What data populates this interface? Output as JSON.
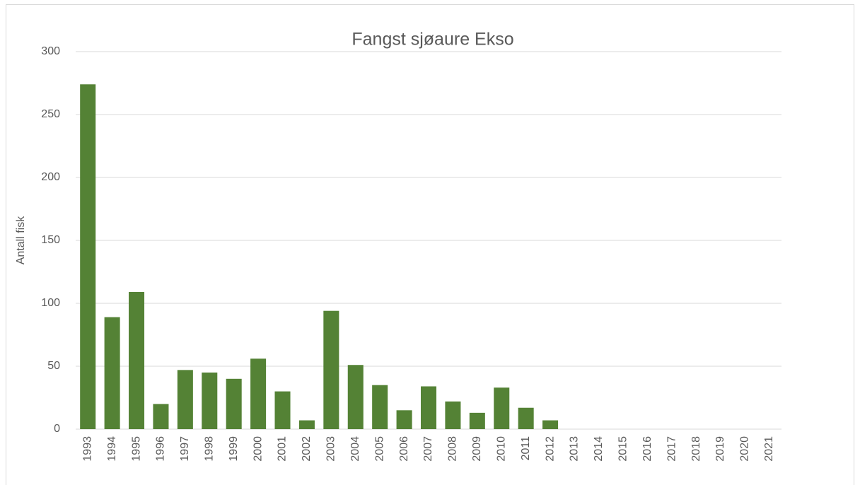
{
  "chart_data": {
    "type": "bar",
    "title": "Fangst sjøaure Ekso",
    "y_label": "Antall fisk",
    "categories": [
      "1993",
      "1994",
      "1995",
      "1996",
      "1997",
      "1998",
      "1999",
      "2000",
      "2001",
      "2002",
      "2003",
      "2004",
      "2005",
      "2006",
      "2007",
      "2008",
      "2009",
      "2010",
      "2011",
      "2012",
      "2013",
      "2014",
      "2015",
      "2016",
      "2017",
      "2018",
      "2019",
      "2020",
      "2021"
    ],
    "values": [
      274,
      89,
      109,
      20,
      47,
      45,
      40,
      56,
      30,
      7,
      94,
      51,
      35,
      15,
      34,
      22,
      13,
      33,
      17,
      7,
      null,
      null,
      null,
      null,
      null,
      null,
      null,
      null,
      null
    ],
    "color": "#548235",
    "ylim": [
      0,
      300
    ],
    "yticks": [
      0,
      50,
      100,
      150,
      200,
      250,
      300
    ],
    "grid": true
  }
}
